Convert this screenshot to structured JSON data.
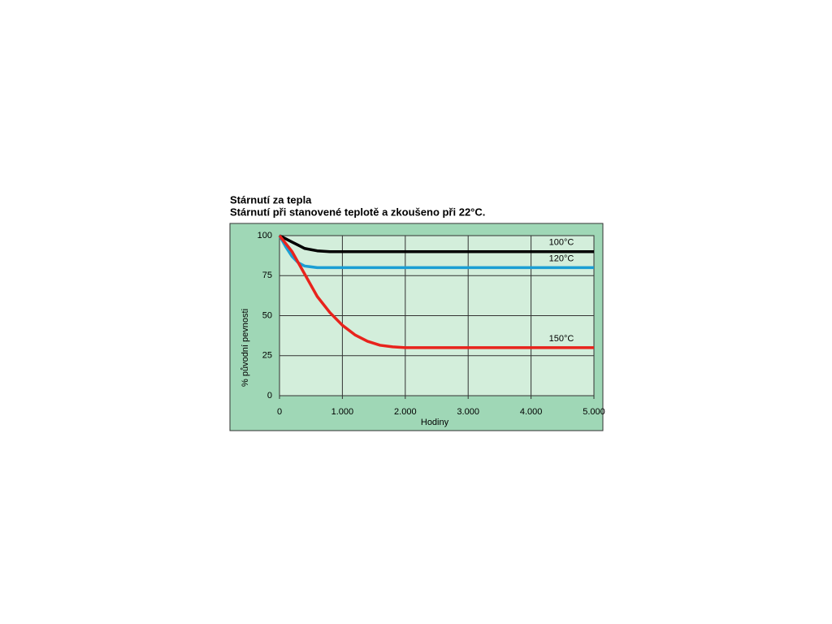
{
  "chart_data": {
    "type": "line",
    "title": "Stárnutí za tepla",
    "subtitle": "Stárnutí při stanovené teplotě a zkoušeno při 22°C.",
    "x_label": "Hodiny",
    "y_label": "% původní pevnosti",
    "x": [
      0,
      100,
      200,
      300,
      400,
      600,
      800,
      1000,
      1200,
      1400,
      1600,
      1800,
      2000,
      3000,
      4000,
      5000
    ],
    "series": [
      {
        "name": "100°C",
        "color": "#000000",
        "values": [
          100,
          98,
          96,
          94,
          92,
          90.5,
          90,
          90,
          90,
          90,
          90,
          90,
          90,
          90,
          90,
          90
        ]
      },
      {
        "name": "120°C",
        "color": "#1a9ed4",
        "values": [
          100,
          93,
          87,
          83,
          81,
          80,
          80,
          80,
          80,
          80,
          80,
          80,
          80,
          80,
          80,
          80
        ]
      },
      {
        "name": "150°C",
        "color": "#e8231c",
        "values": [
          100,
          95,
          90,
          83,
          76,
          62,
          52,
          44,
          38,
          34,
          31.5,
          30.5,
          30,
          30,
          30,
          30
        ]
      }
    ],
    "xlim": [
      0,
      5000
    ],
    "xticks": [
      0,
      {
        "value": 1000,
        "label": "1.000"
      },
      {
        "value": 2000,
        "label": "2.000"
      },
      {
        "value": 3000,
        "label": "3.000"
      },
      {
        "value": 4000,
        "label": "4.000"
      },
      {
        "value": 5000,
        "label": "5.000"
      }
    ],
    "ylim": [
      0,
      100
    ],
    "yticks": [
      0,
      25,
      50,
      75,
      100
    ],
    "grid": true
  }
}
